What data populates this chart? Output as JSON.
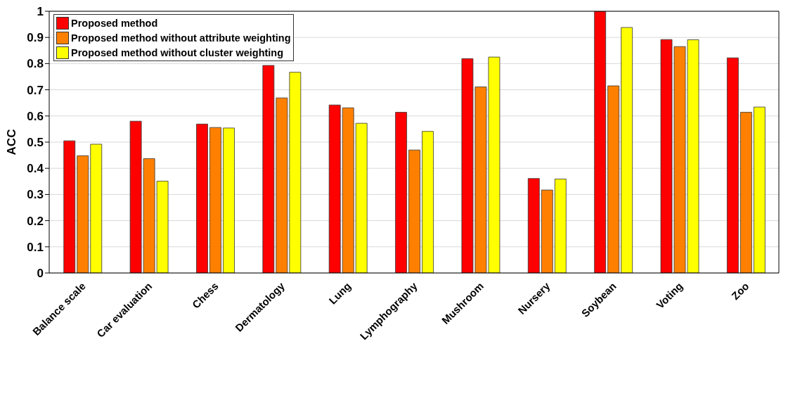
{
  "chart_data": {
    "type": "bar",
    "ylabel": "ACC",
    "categories": [
      "Balance scale",
      "Car evaluation",
      "Chess",
      "Dermatology",
      "Lung",
      "Lymphography",
      "Mushroom",
      "Nursery",
      "Soybean",
      "Voting",
      "Zoo"
    ],
    "series": [
      {
        "name": "Proposed method",
        "color": "#ff0000",
        "values": [
          0.505,
          0.58,
          0.569,
          0.793,
          0.642,
          0.614,
          0.819,
          0.361,
          1.0,
          0.892,
          0.822
        ]
      },
      {
        "name": "Proposed method without attribute weighting",
        "color": "#ff8000",
        "values": [
          0.448,
          0.437,
          0.556,
          0.669,
          0.631,
          0.47,
          0.711,
          0.317,
          0.715,
          0.865,
          0.614
        ]
      },
      {
        "name": "Proposed method without cluster weighting",
        "color": "#ffff00",
        "values": [
          0.492,
          0.351,
          0.554,
          0.767,
          0.572,
          0.541,
          0.825,
          0.359,
          0.938,
          0.891,
          0.634
        ]
      }
    ],
    "ylim": [
      0,
      1
    ],
    "yticks": [
      0,
      0.1,
      0.2,
      0.3,
      0.4,
      0.5,
      0.6,
      0.7,
      0.8,
      0.9,
      1
    ],
    "grid": "y",
    "legend": "top left"
  }
}
